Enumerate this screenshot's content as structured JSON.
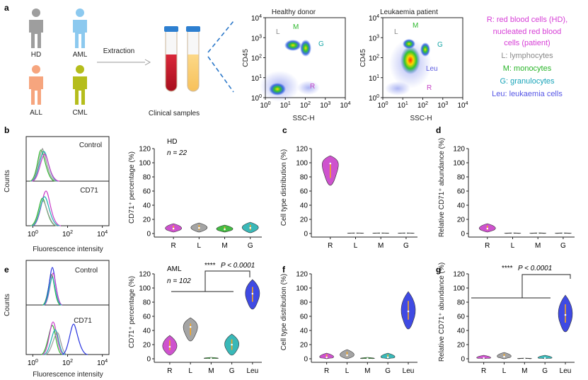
{
  "panels": {
    "a": {
      "label": "a",
      "people": [
        {
          "label": "HD",
          "color": "#9e9e9e"
        },
        {
          "label": "AML",
          "color": "#8cc9ef"
        },
        {
          "label": "ALL",
          "color": "#f6a57e"
        },
        {
          "label": "CML",
          "color": "#b5bd1c"
        }
      ],
      "extraction_label": "Extraction",
      "samples_label": "Clinical samples",
      "flow_plots": [
        {
          "title": "Healthy donor",
          "xlabel": "SSC-H",
          "ylabel": "CD45",
          "xticks": [
            "10^0",
            "10^1",
            "10^2",
            "10^3",
            "10^4"
          ],
          "yticks": [
            "10^0",
            "10^1",
            "10^2",
            "10^3",
            "10^4"
          ],
          "gates": [
            {
              "text": "L",
              "color": "#888888"
            },
            {
              "text": "M",
              "color": "#2db82d"
            },
            {
              "text": "G",
              "color": "#19a7a7"
            },
            {
              "text": "R",
              "color": "#c642c6"
            }
          ]
        },
        {
          "title": "Leukaemia patient",
          "xlabel": "SSC-H",
          "ylabel": "CD45",
          "xticks": [
            "10^0",
            "10^1",
            "10^2",
            "10^3",
            "10^4"
          ],
          "yticks": [
            "10^0",
            "10^1",
            "10^2",
            "10^3",
            "10^4"
          ],
          "gates": [
            {
              "text": "L",
              "color": "#888888"
            },
            {
              "text": "M",
              "color": "#2db82d"
            },
            {
              "text": "G",
              "color": "#19a7a7"
            },
            {
              "text": "Leu",
              "color": "#5a5ae0"
            },
            {
              "text": "R",
              "color": "#c642c6"
            }
          ]
        }
      ],
      "legend": [
        {
          "text": "R: red blood cells (HD),",
          "color": "#d63cd6"
        },
        {
          "text": "nucleated red blood",
          "color": "#d63cd6"
        },
        {
          "text": "cells (patient)",
          "color": "#d63cd6"
        },
        {
          "text": "L: lymphocytes",
          "color": "#8a8a8a"
        },
        {
          "text": "M: monocytes",
          "color": "#29b529"
        },
        {
          "text": "G: granulocytes",
          "color": "#17a3b8"
        },
        {
          "text": "Leu: leukaemia cells",
          "color": "#5656e6"
        }
      ]
    },
    "b": {
      "label": "b",
      "hist_xlabel": "Fluorescence intensity",
      "hist_ylabel": "Counts",
      "hist_xticks": [
        "10^0",
        "10^2",
        "10^4"
      ],
      "hist_top_label": "Control",
      "hist_bottom_label": "CD71",
      "cohort": "HD",
      "n_text": "n = 22",
      "ylabel": "CD71⁺ percentage (%)"
    },
    "c": {
      "label": "c",
      "ylabel": "Cell type distribution (%)"
    },
    "d": {
      "label": "d",
      "ylabel": "Relative CD71⁺ abundance (%)"
    },
    "e": {
      "label": "e",
      "hist_xlabel": "Fluorescence intensity",
      "hist_ylabel": "Counts",
      "hist_xticks": [
        "10^0",
        "10^2",
        "10^4"
      ],
      "hist_top_label": "Control",
      "hist_bottom_label": "CD71",
      "cohort": "AML",
      "n_text": "n = 102",
      "ylabel": "CD71⁺ percentage (%)",
      "sig_stars": "****",
      "sig_p": "P < 0.0001"
    },
    "f": {
      "label": "f",
      "ylabel": "Cell type distribution (%)"
    },
    "g": {
      "label": "g",
      "ylabel": "Relative CD71⁺ abundance (%)",
      "sig_stars": "****",
      "sig_p": "P < 0.0001"
    }
  },
  "chart_data": [
    {
      "id": "b-violin",
      "type": "violin",
      "categories": [
        "R",
        "L",
        "M",
        "G"
      ],
      "colors": [
        "#c93fc9",
        "#9a9a9a",
        "#2fb52f",
        "#23b0b0"
      ],
      "medians": [
        7,
        8,
        6,
        8
      ],
      "ranges": [
        [
          2,
          14
        ],
        [
          2,
          15
        ],
        [
          2,
          12
        ],
        [
          1,
          16
        ]
      ],
      "ylim": [
        0,
        120
      ],
      "yticks": [
        0,
        20,
        40,
        60,
        80,
        100,
        120
      ]
    },
    {
      "id": "c-violin",
      "type": "violin",
      "categories": [
        "R",
        "L",
        "M",
        "G"
      ],
      "colors": [
        "#c93fc9",
        "#9a9a9a",
        "#2fb52f",
        "#23b0b0"
      ],
      "medians": [
        99,
        0.5,
        0.5,
        0.5
      ],
      "ranges": [
        [
          68,
          110
        ],
        [
          0,
          1
        ],
        [
          0,
          1
        ],
        [
          0,
          1
        ]
      ],
      "ylim": [
        0,
        120
      ],
      "yticks": [
        0,
        20,
        40,
        60,
        80,
        100,
        120
      ]
    },
    {
      "id": "d-violin",
      "type": "violin",
      "categories": [
        "R",
        "L",
        "M",
        "G"
      ],
      "colors": [
        "#c93fc9",
        "#9a9a9a",
        "#2fb52f",
        "#23b0b0"
      ],
      "medians": [
        7,
        0.3,
        0.3,
        0.3
      ],
      "ranges": [
        [
          2,
          14
        ],
        [
          0,
          1
        ],
        [
          0,
          1
        ],
        [
          0,
          1
        ]
      ],
      "ylim": [
        0,
        120
      ],
      "yticks": [
        0,
        20,
        40,
        60,
        80,
        100,
        120
      ]
    },
    {
      "id": "e-violin",
      "type": "violin",
      "categories": [
        "R",
        "L",
        "M",
        "G",
        "Leu"
      ],
      "colors": [
        "#c93fc9",
        "#9a9a9a",
        "#2fb52f",
        "#23b0b0",
        "#2a36e0"
      ],
      "medians": [
        17,
        45,
        0.5,
        20,
        92
      ],
      "ranges": [
        [
          5,
          33
        ],
        [
          25,
          58
        ],
        [
          0,
          2
        ],
        [
          5,
          35
        ],
        [
          70,
          112
        ]
      ],
      "ylim": [
        0,
        120
      ],
      "yticks": [
        0,
        20,
        40,
        60,
        80,
        100,
        120
      ]
    },
    {
      "id": "f-violin",
      "type": "violin",
      "categories": [
        "R",
        "L",
        "M",
        "G",
        "Leu"
      ],
      "colors": [
        "#c93fc9",
        "#9a9a9a",
        "#2fb52f",
        "#23b0b0",
        "#2a36e0"
      ],
      "medians": [
        2,
        5,
        0.3,
        2,
        67
      ],
      "ranges": [
        [
          0,
          8
        ],
        [
          0,
          13
        ],
        [
          0,
          2
        ],
        [
          0,
          8
        ],
        [
          42,
          95
        ]
      ],
      "ylim": [
        0,
        120
      ],
      "yticks": [
        0,
        20,
        40,
        60,
        80,
        100,
        120
      ]
    },
    {
      "id": "g-violin",
      "type": "violin",
      "categories": [
        "R",
        "L",
        "M",
        "G",
        "Leu"
      ],
      "colors": [
        "#c93fc9",
        "#9a9a9a",
        "#2fb52f",
        "#23b0b0",
        "#2a36e0"
      ],
      "medians": [
        1,
        3,
        0.2,
        1,
        62
      ],
      "ranges": [
        [
          0,
          5
        ],
        [
          0,
          9
        ],
        [
          0,
          1
        ],
        [
          0,
          5
        ],
        [
          38,
          90
        ]
      ],
      "ylim": [
        0,
        120
      ],
      "yticks": [
        0,
        20,
        40,
        60,
        80,
        100,
        120
      ]
    }
  ]
}
